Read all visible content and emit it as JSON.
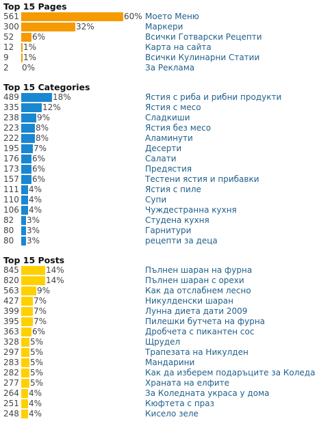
{
  "chart_data": [
    {
      "type": "bar",
      "title": "Top 15 Pages",
      "color": "#f59a00",
      "rows": [
        {
          "count": 561,
          "pct": "60%",
          "label": "Моето Меню"
        },
        {
          "count": 300,
          "pct": "32%",
          "label": "Маркери"
        },
        {
          "count": 52,
          "pct": "6%",
          "label": "Всички Готварски Рецепти"
        },
        {
          "count": 12,
          "pct": "1%",
          "label": "Карта на сайта"
        },
        {
          "count": 9,
          "pct": "1%",
          "label": "Всички Кулинарни Статии"
        },
        {
          "count": 2,
          "pct": "0%",
          "label": "За Реклама"
        }
      ]
    },
    {
      "type": "bar",
      "title": "Top 15 Categories",
      "color": "#1a87d1",
      "rows": [
        {
          "count": 489,
          "pct": "18%",
          "label": "Ястия с риба и рибни продукти"
        },
        {
          "count": 335,
          "pct": "12%",
          "label": "Ястия с месо"
        },
        {
          "count": 238,
          "pct": "9%",
          "label": "Сладкиши"
        },
        {
          "count": 223,
          "pct": "8%",
          "label": "Ястия без месо"
        },
        {
          "count": 222,
          "pct": "8%",
          "label": "Аламинути"
        },
        {
          "count": 195,
          "pct": "7%",
          "label": "Десерти"
        },
        {
          "count": 176,
          "pct": "6%",
          "label": "Салати"
        },
        {
          "count": 173,
          "pct": "6%",
          "label": "Предястия"
        },
        {
          "count": 157,
          "pct": "6%",
          "label": "Тестени ястия и прибавки"
        },
        {
          "count": 111,
          "pct": "4%",
          "label": "Ястия с пиле"
        },
        {
          "count": 110,
          "pct": "4%",
          "label": "Супи"
        },
        {
          "count": 106,
          "pct": "4%",
          "label": "Чуждестранна кухня"
        },
        {
          "count": 82,
          "pct": "3%",
          "label": "Студена кухня"
        },
        {
          "count": 80,
          "pct": "3%",
          "label": "Гарнитури"
        },
        {
          "count": 80,
          "pct": "3%",
          "label": "рецепти за деца"
        }
      ]
    },
    {
      "type": "bar",
      "title": "Top 15 Posts",
      "color": "#ffd000",
      "rows": [
        {
          "count": 845,
          "pct": "14%",
          "label": "Пълнен шаран на фурна"
        },
        {
          "count": 820,
          "pct": "14%",
          "label": "Пълнен шаран с орехи"
        },
        {
          "count": 563,
          "pct": "9%",
          "label": "Как да отслабнем лесно"
        },
        {
          "count": 427,
          "pct": "7%",
          "label": "Никулденски шаран"
        },
        {
          "count": 399,
          "pct": "7%",
          "label": "Лунна диета дати 2009"
        },
        {
          "count": 395,
          "pct": "7%",
          "label": "Пилешки бутчета на фурна"
        },
        {
          "count": 363,
          "pct": "6%",
          "label": "Дробчета с пикантен сос"
        },
        {
          "count": 328,
          "pct": "5%",
          "label": "Щрудел"
        },
        {
          "count": 297,
          "pct": "5%",
          "label": "Трапезата на Никулден"
        },
        {
          "count": 283,
          "pct": "5%",
          "label": "Мандарини"
        },
        {
          "count": 282,
          "pct": "5%",
          "label": "Как да изберем подаръците за Коледа"
        },
        {
          "count": 277,
          "pct": "5%",
          "label": "Храната на елфите"
        },
        {
          "count": 264,
          "pct": "4%",
          "label": "За Коледната украса у дома"
        },
        {
          "count": 251,
          "pct": "4%",
          "label": "Кюфтета с праз"
        },
        {
          "count": 248,
          "pct": "4%",
          "label": "Кисело зеле"
        }
      ]
    }
  ]
}
